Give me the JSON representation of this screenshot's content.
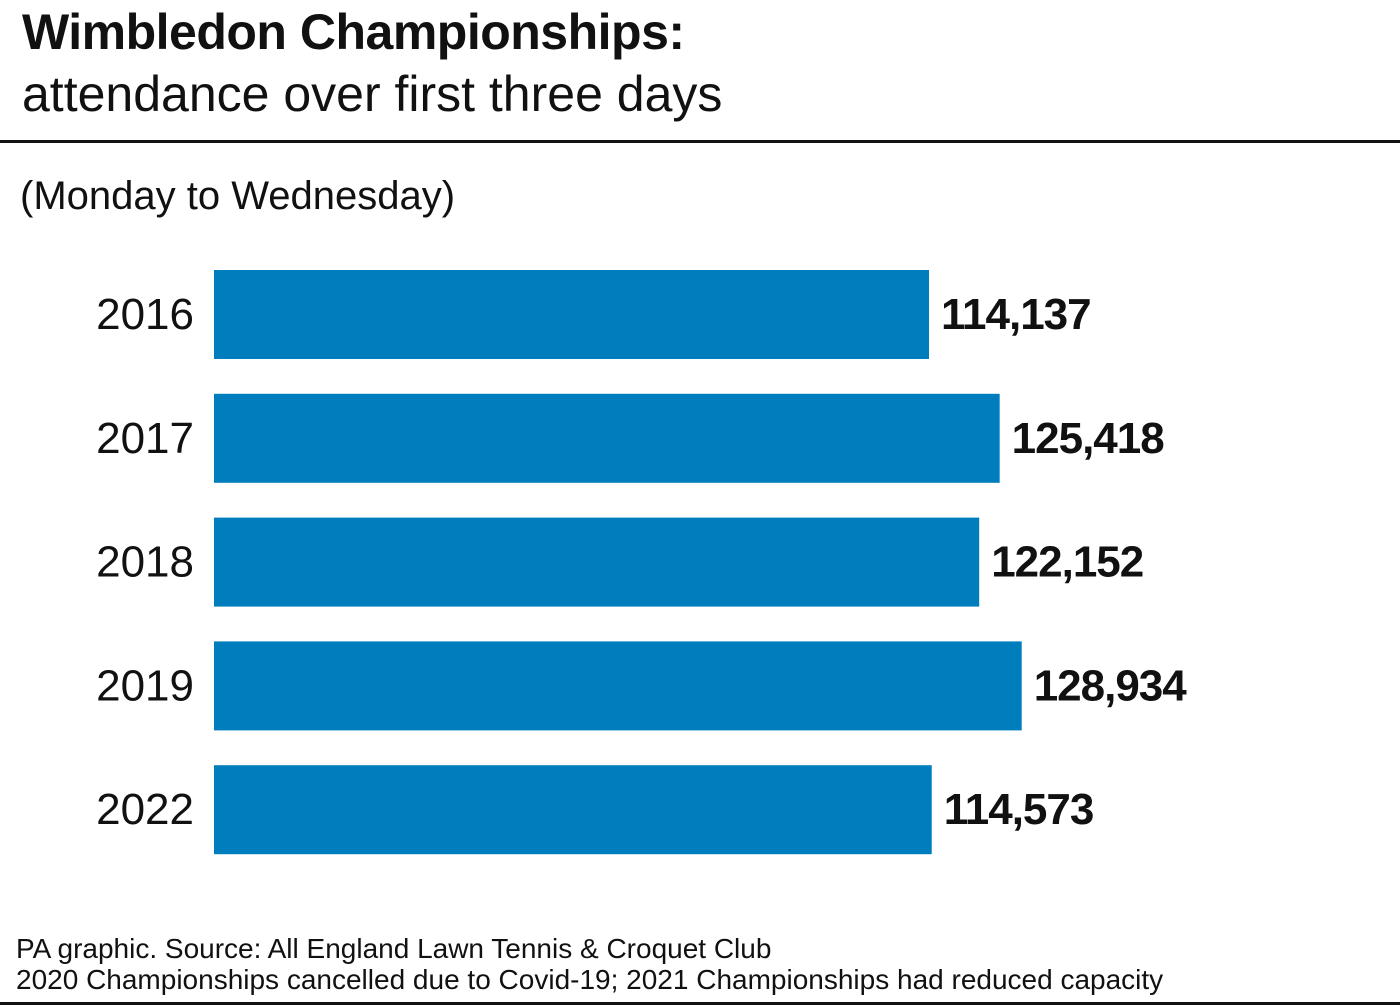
{
  "header": {
    "title": "Wimbledon Championships:",
    "subtitle": "attendance over first three days"
  },
  "note": "(Monday to Wednesday)",
  "footer": {
    "source": "PA graphic. Source: All England Lawn Tennis & Croquet Club",
    "footnote": "2020 Championships cancelled due to Covid-19; 2021 Championships had reduced capacity"
  },
  "colors": {
    "bar": "#007dbc",
    "text": "#111111"
  },
  "chart_data": {
    "type": "bar",
    "orientation": "horizontal",
    "title": "Wimbledon Championships:",
    "subtitle": "attendance over first three days",
    "categories": [
      "2016",
      "2017",
      "2018",
      "2019",
      "2022"
    ],
    "values": [
      114137,
      125418,
      122152,
      128934,
      114573
    ],
    "value_labels": [
      "114,137",
      "125,418",
      "122,152",
      "128,934",
      "114,573"
    ],
    "xlabel": "",
    "ylabel": "",
    "xlim": [
      0,
      140000
    ],
    "grid": false,
    "legend": "none"
  }
}
